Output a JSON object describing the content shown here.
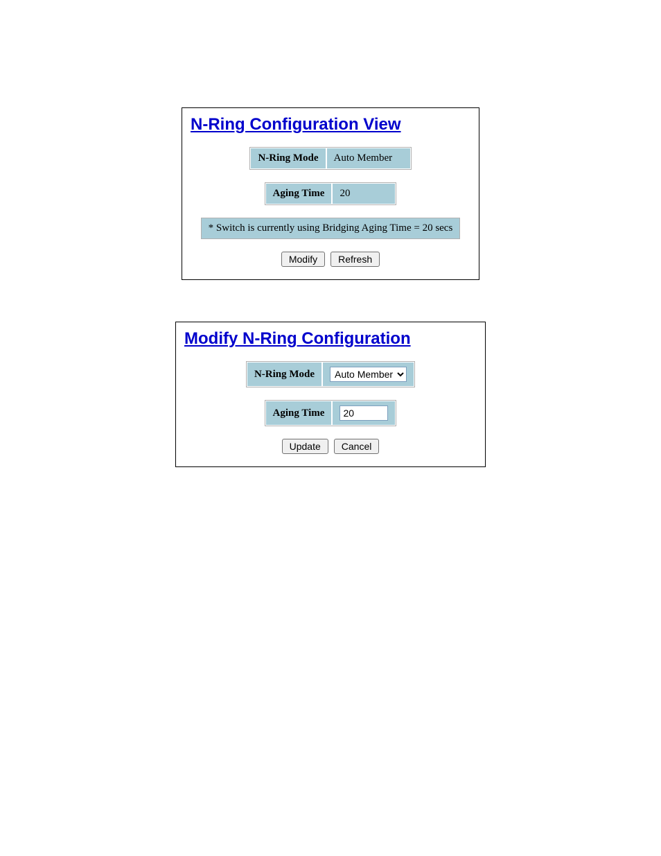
{
  "view_panel": {
    "title": "N-Ring Configuration View",
    "mode_label": "N-Ring Mode",
    "mode_value": "Auto Member",
    "aging_label": "Aging Time",
    "aging_value": "20",
    "note": "* Switch is currently using Bridging Aging Time = 20 secs",
    "modify_btn": "Modify",
    "refresh_btn": "Refresh"
  },
  "modify_panel": {
    "title": "Modify N-Ring Configuration",
    "mode_label": "N-Ring Mode",
    "mode_selected": "Auto Member",
    "aging_label": "Aging Time",
    "aging_value": "20",
    "update_btn": "Update",
    "cancel_btn": "Cancel"
  },
  "colors": {
    "title_color": "#0000cc",
    "cell_bg": "#a8cdd8",
    "panel_border": "#000000"
  }
}
